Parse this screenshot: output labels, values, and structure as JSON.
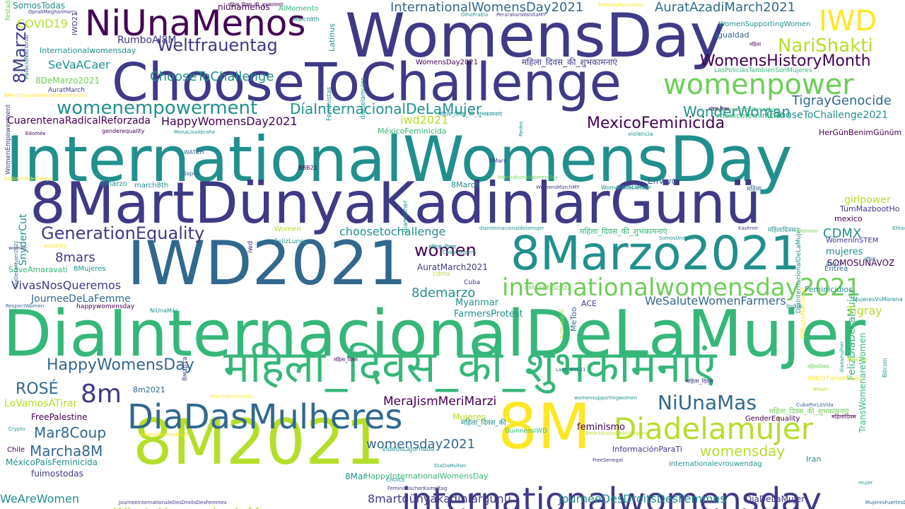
{
  "palette": {
    "dark_purple": "#440154",
    "indigo": "#3e3a86",
    "blue": "#31688e",
    "teal": "#21908d",
    "green": "#35b779",
    "light_green": "#6ece58",
    "lime": "#b5de2b",
    "yellow": "#fde725"
  },
  "words": [
    {
      "text": "InternationalWomensDay",
      "color": "teal"
    },
    {
      "text": "DiaInternacionalDeLaMujer",
      "color": "green"
    },
    {
      "text": "WomensDay",
      "color": "indigo"
    },
    {
      "text": "8MartDünyaKadinlarGünü",
      "color": "indigo"
    },
    {
      "text": "ChooseToChallenge",
      "color": "indigo"
    },
    {
      "text": "IWD2021",
      "color": "blue"
    },
    {
      "text": "8M2021",
      "color": "lime"
    },
    {
      "text": "8M",
      "color": "yellow"
    },
    {
      "text": "8Marzo2021",
      "color": "teal"
    },
    {
      "text": "महिला_दिवस_की_शुभकामनाएं",
      "color": "green"
    },
    {
      "text": "NiUnaMenos",
      "color": "dark_purple"
    },
    {
      "text": "internationalwomensday",
      "color": "indigo"
    },
    {
      "text": "DiaDasMulheres",
      "color": "blue"
    },
    {
      "text": "Diadelamujer",
      "color": "lime"
    },
    {
      "text": "internationalwomensday2021",
      "color": "light_green"
    },
    {
      "text": "womenpower",
      "color": "light_green"
    },
    {
      "text": "IWD",
      "color": "yellow"
    },
    {
      "text": "NariShakti",
      "color": "lime"
    },
    {
      "text": "womenempowerment",
      "color": "teal"
    },
    {
      "text": "Weltfrauentag",
      "color": "indigo"
    },
    {
      "text": "WomensHistoryMonth",
      "color": "dark_purple"
    },
    {
      "text": "GenerationEquality",
      "color": "indigo"
    },
    {
      "text": "HappyWomensDay",
      "color": "blue"
    },
    {
      "text": "NiUnaMas",
      "color": "blue"
    },
    {
      "text": "MexicoFeminicida",
      "color": "dark_purple"
    },
    {
      "text": "DíaInternacionalDeLaMujer",
      "color": "teal"
    },
    {
      "text": "ChooseToChallenge",
      "color": "teal"
    },
    {
      "text": "WonderWoman",
      "color": "teal"
    },
    {
      "text": "TigrayGenocide",
      "color": "blue"
    },
    {
      "text": "WhatsHappeningInMyanmar",
      "color": "lime"
    },
    {
      "text": "Marcha8M",
      "color": "blue"
    },
    {
      "text": "Mar8Coup",
      "color": "blue"
    },
    {
      "text": "8Marzo",
      "color": "indigo"
    },
    {
      "text": "8m",
      "color": "indigo"
    },
    {
      "text": "ROSÉ",
      "color": "blue"
    },
    {
      "text": "InternationalWomensDay2021",
      "color": "blue"
    },
    {
      "text": "AuratAzadiMarch2021",
      "color": "blue"
    },
    {
      "text": "womensday",
      "color": "lime"
    },
    {
      "text": "womensday2021",
      "color": "blue"
    },
    {
      "text": "MeraJismMeriMarzi",
      "color": "dark_purple"
    },
    {
      "text": "WeAreWomen",
      "color": "teal"
    },
    {
      "text": "8martdünyakadınlargünü",
      "color": "indigo"
    },
    {
      "text": "JourneeDesDroitsDesFemmes",
      "color": "teal"
    },
    {
      "text": "women",
      "color": "dark_purple"
    },
    {
      "text": "COVID19",
      "color": "lime"
    },
    {
      "text": "SeVaACaer",
      "color": "teal"
    },
    {
      "text": "CDMX",
      "color": "teal"
    },
    {
      "text": "HappyWomensDay2021",
      "color": "dark_purple"
    },
    {
      "text": "WeSaluteWomenFarmers",
      "color": "blue"
    },
    {
      "text": "choosetochallenge",
      "color": "teal"
    },
    {
      "text": "8mars",
      "color": "indigo"
    },
    {
      "text": "8demarzo",
      "color": "teal"
    },
    {
      "text": "VivasNosQueremos",
      "color": "indigo"
    },
    {
      "text": "CuarentenaRadicalReforzada",
      "color": "dark_purple"
    },
    {
      "text": "RumboAl8M",
      "color": "indigo"
    },
    {
      "text": "ChooseToChallenge2021",
      "color": "teal"
    },
    {
      "text": "8DeMarzo2021",
      "color": "light_green"
    },
    {
      "text": "SnyderCut",
      "color": "teal"
    },
    {
      "text": "FelizDíaDeLaMujer",
      "color": "green"
    },
    {
      "text": "TransWomenareWomen",
      "color": "green"
    },
    {
      "text": "iwd2021",
      "color": "lime"
    },
    {
      "text": "Tigray",
      "color": "lime"
    },
    {
      "text": "girlpower",
      "color": "lime"
    },
    {
      "text": "JourneeDeLaFemme",
      "color": "blue"
    },
    {
      "text": "AuratMarch2021",
      "color": "indigo"
    },
    {
      "text": "LoVamosATirar",
      "color": "lime"
    },
    {
      "text": "FreePalestine",
      "color": "dark_purple"
    },
    {
      "text": "MéxicoPaísFeminicida",
      "color": "teal"
    },
    {
      "text": "fuimostodas",
      "color": "indigo"
    },
    {
      "text": "Myanmar",
      "color": "teal"
    },
    {
      "text": "FarmersProtest",
      "color": "teal"
    },
    {
      "text": "feminismo",
      "color": "dark_purple"
    },
    {
      "text": "mujeres",
      "color": "teal"
    },
    {
      "text": "SOMOSUNAVOZ",
      "color": "dark_purple"
    },
    {
      "text": "HappyInternationalWomensDay",
      "color": "green"
    },
    {
      "text": "SomosTodas",
      "color": "teal"
    },
    {
      "text": "niunamenos",
      "color": "dark_purple"
    },
    {
      "text": "AlMomento",
      "color": "green"
    },
    {
      "text": "mexicofeminicida",
      "color": "green"
    },
    {
      "text": "WomenSupportingWomen",
      "color": "teal"
    },
    {
      "text": "igualdad",
      "color": "blue"
    },
    {
      "text": "Internationalwomensday",
      "color": "teal"
    },
    {
      "text": "Latinus",
      "color": "teal"
    },
    {
      "text": "WomensDay2021",
      "color": "dark_purple"
    },
    {
      "text": "MéxicoFeminicida",
      "color": "green"
    },
    {
      "text": "EnVivo",
      "color": "blue"
    },
    {
      "text": "HerGünBenimGünüm",
      "color": "dark_purple"
    },
    {
      "text": "8marzo",
      "color": "teal"
    },
    {
      "text": "march8th",
      "color": "teal"
    },
    {
      "text": "8March",
      "color": "teal"
    },
    {
      "text": "TumMazbootHo",
      "color": "indigo"
    },
    {
      "text": "mexico",
      "color": "dark_purple"
    },
    {
      "text": "WomenInSTEM",
      "color": "indigo"
    },
    {
      "text": "Women",
      "color": "lime"
    },
    {
      "text": "8Mujeres",
      "color": "teal"
    },
    {
      "text": "SaveAmaravati",
      "color": "green"
    },
    {
      "text": "Mujeres",
      "color": "lime"
    },
    {
      "text": "8m2021",
      "color": "blue"
    },
    {
      "text": "MarchaFeminista",
      "color": "yellow"
    },
    {
      "text": "8Mar",
      "color": "teal"
    },
    {
      "text": "DíaDeLaMujer",
      "color": "indigo"
    },
    {
      "text": "InformaciónParaTi",
      "color": "indigo"
    },
    {
      "text": "internationalevrouwendag",
      "color": "teal"
    },
    {
      "text": "Iran",
      "color": "teal"
    },
    {
      "text": "GenderEquality",
      "color": "dark_purple"
    },
    {
      "text": "CubaPorLaVida",
      "color": "blue"
    },
    {
      "text": "GuinnessIWD",
      "color": "green"
    },
    {
      "text": "VideosLaJornada",
      "color": "teal"
    },
    {
      "text": "ACE",
      "color": "indigo"
    },
    {
      "text": "India",
      "color": "teal"
    },
    {
      "text": "Eritrea",
      "color": "blue"
    },
    {
      "text": "Cuba",
      "color": "indigo"
    },
    {
      "text": "cdmx",
      "color": "lime"
    },
    {
      "text": "8MAntifascista",
      "color": "light_green"
    },
    {
      "text": "MeToo",
      "color": "blue"
    },
    {
      "text": "AMLO",
      "color": "blue"
    },
    {
      "text": "MujeresVsMorena",
      "color": "teal"
    },
    {
      "text": "Chile",
      "color": "dark_purple"
    },
    {
      "text": "Crypto",
      "color": "teal"
    },
    {
      "text": "NiUnaMás",
      "color": "teal"
    },
    {
      "text": "happywomensday",
      "color": "dark_purple"
    },
    {
      "text": "RespectWomen",
      "color": "blue"
    },
    {
      "text": "genderequality",
      "color": "dark_purple"
    },
    {
      "text": "WATCH",
      "color": "blue"
    },
    {
      "text": "Bapuji",
      "color": "blue"
    },
    {
      "text": "Edoméx",
      "color": "dark_purple"
    },
    {
      "text": "AuratMarch",
      "color": "indigo"
    },
    {
      "text": "MonaLisaAbraha",
      "color": "teal"
    },
    {
      "text": "WomenInScience",
      "color": "teal"
    },
    {
      "text": "violencia",
      "color": "teal"
    },
    {
      "text": "Kashmir",
      "color": "indigo"
    },
    {
      "text": "FelizLunes",
      "color": "teal"
    },
    {
      "text": "SomosUnaVoz",
      "color": "teal"
    },
    {
      "text": "LasPolicíasTambienSonMujeres",
      "color": "green"
    },
    {
      "text": "OlhaPraEla",
      "color": "teal"
    },
    {
      "text": "PerarakanWanitaMY",
      "color": "indigo"
    },
    {
      "text": "MondayMotivation",
      "color": "yellow"
    },
    {
      "text": "OprahMeghanHarry",
      "color": "indigo"
    },
    {
      "text": "March8th",
      "color": "teal"
    },
    {
      "text": "IWD21",
      "color": "indigo"
    },
    {
      "text": "PalacioNacional",
      "color": "blue"
    },
    {
      "text": "festadelladonna",
      "color": "light_green"
    },
    {
      "text": "WomenEmpowerment",
      "color": "indigo"
    },
    {
      "text": "Feministas",
      "color": "teal"
    },
    {
      "text": "diadelamujer",
      "color": "teal"
    },
    {
      "text": "Redes",
      "color": "teal"
    },
    {
      "text": "8Mars",
      "color": "indigo"
    },
    {
      "text": "BBB21",
      "color": "dark_purple"
    },
    {
      "text": "InternationalWomenDay",
      "color": "light_green"
    },
    {
      "text": "WomensMarchMY",
      "color": "indigo"
    },
    {
      "text": "DíaDeLaMujer",
      "color": "teal"
    },
    {
      "text": "iwd",
      "color": "indigo"
    },
    {
      "text": "diamulher",
      "color": "teal"
    },
    {
      "text": "CubaCoopera",
      "color": "teal"
    },
    {
      "text": "diainternacionaldelamujer",
      "color": "teal"
    },
    {
      "text": "DíaInternacionalDeLaMujer",
      "color": "teal"
    },
    {
      "text": "Feminicidios",
      "color": "teal"
    },
    {
      "text": "feminism",
      "color": "light_green"
    },
    {
      "text": "Ethiopia",
      "color": "teal"
    },
    {
      "text": "Mexico",
      "color": "lime"
    },
    {
      "text": "AMLOTieneMiedo",
      "color": "yellow"
    },
    {
      "text": "8Mart",
      "color": "lime"
    },
    {
      "text": "8марта",
      "color": "indigo"
    },
    {
      "text": "Lane_RYS21",
      "color": "blue"
    },
    {
      "text": "DiaDaMulher",
      "color": "teal"
    },
    {
      "text": "CHOICE",
      "color": "teal"
    },
    {
      "text": "FeministischerKampftag",
      "color": "indigo"
    },
    {
      "text": "JourneeInternationaleDesDroitsDesFemmes",
      "color": "indigo"
    },
    {
      "text": "KadinaSiddeteHayir",
      "color": "yellow"
    },
    {
      "text": "FreeSenegal",
      "color": "indigo"
    },
    {
      "text": "mujer",
      "color": "teal"
    },
    {
      "text": "MujeresFuertesDeLaPatria",
      "color": "blue"
    },
    {
      "text": "Bitcoin",
      "color": "teal"
    },
    {
      "text": "8martdunyakadınlargunu",
      "color": "lime"
    },
    {
      "text": "womensupportingwomen",
      "color": "teal"
    },
    {
      "text": "ActForEqual",
      "color": "lime"
    },
    {
      "text": "diadamulher",
      "color": "teal"
    },
    {
      "text": "8MLutoNacional",
      "color": "yellow"
    },
    {
      "text": "equality",
      "color": "yellow"
    },
    {
      "text": "woman",
      "color": "indigo"
    },
    {
      "text": "DiaDeLaMujer2021",
      "color": "blue"
    },
    {
      "text": "KadinaSiddeteHayir",
      "color": "yellow"
    },
    {
      "text": "8MartDünyaEmekçiKadınlarGünü",
      "color": "yellow"
    },
    {
      "text": "DíaInternacionalDeLaMujer",
      "color": "green"
    },
    {
      "text": "महिला_दिवस",
      "color": "dark_purple"
    },
    {
      "text": "महिला_दिवस_की_शुभकामनाएं",
      "color": "teal"
    },
    {
      "text": "महिला_दिवस_की_शुभकामनाएं",
      "color": "dark_purple"
    },
    {
      "text": "महिला_दिवस_की_शुभकामनाएं",
      "color": "indigo"
    },
    {
      "text": "महिला_दिवस_की_शुभकामनाएं",
      "color": "green"
    },
    {
      "text": "महिला_दिवस_की_शुभकामनाएं",
      "color": "light_green"
    },
    {
      "text": "महिला_दिवस",
      "color": "indigo"
    },
    {
      "text": "महिलादिवस",
      "color": "teal"
    },
    {
      "text": "महिलादिवस",
      "color": "dark_purple"
    },
    {
      "text": "महिलादिवस",
      "color": "light_green"
    },
    {
      "text": "महिला_दिवस",
      "color": "teal"
    },
    {
      "text": "महिला_दिवस_की",
      "color": "teal"
    },
    {
      "text": "महिला_दिवस",
      "color": "dark_purple"
    },
    {
      "text": "महिला",
      "color": "blue"
    },
    {
      "text": "महिला",
      "color": "dark_purple"
    },
    {
      "text": "महिला",
      "color": "blue"
    }
  ]
}
